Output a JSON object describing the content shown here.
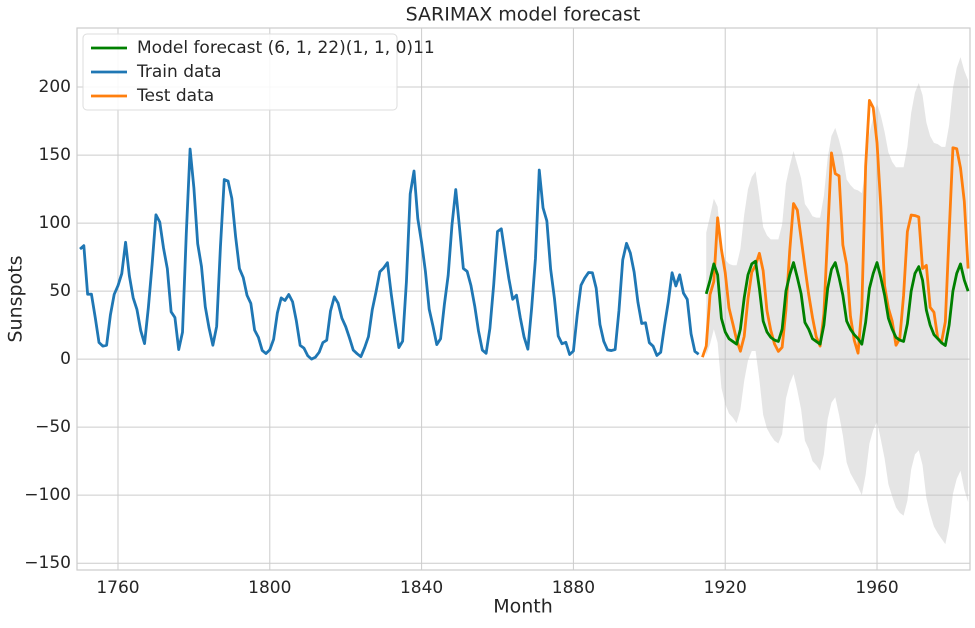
{
  "chart_data": {
    "type": "line",
    "title": "SARIMAX model forecast",
    "x_label": "Month",
    "y_label": "Sunspots",
    "xlim": [
      1749.2,
      1984.5
    ],
    "ylim": [
      -155,
      243.4
    ],
    "xticks": [
      1760,
      1800,
      1840,
      1880,
      1920,
      1960
    ],
    "yticks": [
      {
        "value": -150,
        "label": "−150"
      },
      {
        "value": -100,
        "label": "−100"
      },
      {
        "value": -50,
        "label": "−50"
      },
      0,
      50,
      100,
      150,
      200
    ],
    "grid": true,
    "legend": "upper left",
    "series": [
      {
        "name": "Model forecast (6, 1, 22)(1, 1, 0)11",
        "color": "#008000",
        "x": [
          1915,
          1916,
          1917,
          1918,
          1919,
          1920,
          1921,
          1922,
          1923,
          1924,
          1925,
          1926,
          1927,
          1928,
          1929,
          1930,
          1931,
          1932,
          1933,
          1934,
          1935,
          1936,
          1937,
          1938,
          1939,
          1940,
          1941,
          1942,
          1943,
          1944,
          1945,
          1946,
          1947,
          1948,
          1949,
          1950,
          1951,
          1952,
          1953,
          1954,
          1955,
          1956,
          1957,
          1958,
          1959,
          1960,
          1961,
          1962,
          1963,
          1964,
          1965,
          1966,
          1967,
          1968,
          1969,
          1970,
          1971,
          1972,
          1973,
          1974,
          1975,
          1976,
          1977,
          1978,
          1979,
          1980,
          1981,
          1982,
          1983,
          1984
        ],
        "values": [
          48,
          58,
          70,
          62,
          30,
          20,
          15,
          13,
          11,
          22,
          45,
          62,
          70,
          72,
          52,
          28,
          20,
          16,
          14,
          13,
          22,
          50,
          62,
          71,
          60,
          48,
          27,
          22,
          15,
          13,
          11,
          25,
          52,
          66,
          71,
          60,
          47,
          28,
          22,
          18,
          15,
          11,
          27,
          52,
          63,
          71,
          60,
          47,
          30,
          22,
          16,
          14,
          13,
          26,
          50,
          63,
          68,
          58,
          36,
          25,
          18,
          15,
          12,
          10,
          25,
          50,
          63,
          70,
          58,
          50
        ]
      },
      {
        "name": "Train data",
        "color": "#1f77b4",
        "x": [
          1750,
          1751,
          1752,
          1753,
          1754,
          1755,
          1756,
          1757,
          1758,
          1759,
          1760,
          1761,
          1762,
          1763,
          1764,
          1765,
          1766,
          1767,
          1768,
          1769,
          1770,
          1771,
          1772,
          1773,
          1774,
          1775,
          1776,
          1777,
          1778,
          1779,
          1780,
          1781,
          1782,
          1783,
          1784,
          1785,
          1786,
          1787,
          1788,
          1789,
          1790,
          1791,
          1792,
          1793,
          1794,
          1795,
          1796,
          1797,
          1798,
          1799,
          1800,
          1801,
          1802,
          1803,
          1804,
          1805,
          1806,
          1807,
          1808,
          1809,
          1810,
          1811,
          1812,
          1813,
          1814,
          1815,
          1816,
          1817,
          1818,
          1819,
          1820,
          1821,
          1822,
          1823,
          1824,
          1825,
          1826,
          1827,
          1828,
          1829,
          1830,
          1831,
          1832,
          1833,
          1834,
          1835,
          1836,
          1837,
          1838,
          1839,
          1840,
          1841,
          1842,
          1843,
          1844,
          1845,
          1846,
          1847,
          1848,
          1849,
          1850,
          1851,
          1852,
          1853,
          1854,
          1855,
          1856,
          1857,
          1858,
          1859,
          1860,
          1861,
          1862,
          1863,
          1864,
          1865,
          1866,
          1867,
          1868,
          1869,
          1870,
          1871,
          1872,
          1873,
          1874,
          1875,
          1876,
          1877,
          1878,
          1879,
          1880,
          1881,
          1882,
          1883,
          1884,
          1885,
          1886,
          1887,
          1888,
          1889,
          1890,
          1891,
          1892,
          1893,
          1894,
          1895,
          1896,
          1897,
          1898,
          1899,
          1900,
          1901,
          1902,
          1903,
          1904,
          1905,
          1906,
          1907,
          1908,
          1909,
          1910,
          1911,
          1912,
          1913
        ],
        "values": [
          80.9,
          83.4,
          47.7,
          47.8,
          30.7,
          12.2,
          9.6,
          10.2,
          32.4,
          47.6,
          54.0,
          62.9,
          85.9,
          61.2,
          45.1,
          36.4,
          20.9,
          11.4,
          37.8,
          69.8,
          106.1,
          100.8,
          81.6,
          66.5,
          34.8,
          30.6,
          7.0,
          19.8,
          92.5,
          154.4,
          125.9,
          84.8,
          68.1,
          38.5,
          22.8,
          10.2,
          24.1,
          82.9,
          132.0,
          130.9,
          118.1,
          89.9,
          66.6,
          60.0,
          46.9,
          41.0,
          21.3,
          16.0,
          6.4,
          4.1,
          6.8,
          14.5,
          34.0,
          45.0,
          43.1,
          47.5,
          42.2,
          28.1,
          10.1,
          8.1,
          2.5,
          0.0,
          1.4,
          5.0,
          12.2,
          13.9,
          35.4,
          45.8,
          41.1,
          30.1,
          23.9,
          15.6,
          6.6,
          4.0,
          1.8,
          8.5,
          16.6,
          36.3,
          49.6,
          64.2,
          67.0,
          70.9,
          47.8,
          27.5,
          8.5,
          13.2,
          56.9,
          121.5,
          138.3,
          103.2,
          85.7,
          64.6,
          36.7,
          24.2,
          10.7,
          15.0,
          40.1,
          61.5,
          98.5,
          124.7,
          96.3,
          66.6,
          64.5,
          54.1,
          39.0,
          20.6,
          6.7,
          4.3,
          22.7,
          54.8,
          93.8,
          95.8,
          77.2,
          59.1,
          44.0,
          47.0,
          30.5,
          16.3,
          7.3,
          37.6,
          74.0,
          139.0,
          111.2,
          101.6,
          66.2,
          44.7,
          17.0,
          11.3,
          12.4,
          3.4,
          6.0,
          32.3,
          54.3,
          59.7,
          63.7,
          63.5,
          52.2,
          25.4,
          13.1,
          6.8,
          6.3,
          7.1,
          35.6,
          73.0,
          85.1,
          78.0,
          64.0,
          41.8,
          26.2,
          26.7,
          12.1,
          9.5,
          2.7,
          5.0,
          24.4,
          42.0,
          63.5,
          53.8,
          62.0,
          48.5,
          43.9,
          18.6,
          5.7,
          3.6
        ]
      },
      {
        "name": "Test data",
        "color": "#ff7f0e",
        "x": [
          1914,
          1915,
          1916,
          1917,
          1918,
          1919,
          1920,
          1921,
          1922,
          1923,
          1924,
          1925,
          1926,
          1927,
          1928,
          1929,
          1930,
          1931,
          1932,
          1933,
          1934,
          1935,
          1936,
          1937,
          1938,
          1939,
          1940,
          1941,
          1942,
          1943,
          1944,
          1945,
          1946,
          1947,
          1948,
          1949,
          1950,
          1951,
          1952,
          1953,
          1954,
          1955,
          1956,
          1957,
          1958,
          1959,
          1960,
          1961,
          1962,
          1963,
          1964,
          1965,
          1966,
          1967,
          1968,
          1969,
          1970,
          1971,
          1972,
          1973,
          1974,
          1975,
          1976,
          1977,
          1978,
          1979,
          1980,
          1981,
          1982,
          1983,
          1984
        ],
        "values": [
          1.4,
          9.6,
          47.4,
          57.1,
          103.9,
          80.6,
          63.6,
          37.6,
          26.1,
          14.2,
          5.8,
          16.7,
          44.3,
          63.9,
          69.0,
          77.8,
          64.9,
          35.7,
          21.2,
          11.1,
          5.7,
          8.7,
          36.1,
          79.7,
          114.4,
          109.6,
          88.8,
          67.8,
          47.5,
          30.6,
          16.3,
          9.6,
          33.2,
          92.6,
          151.6,
          136.3,
          134.7,
          83.9,
          69.4,
          31.5,
          13.9,
          4.4,
          38.0,
          141.7,
          190.2,
          184.8,
          159.0,
          112.3,
          53.9,
          37.5,
          27.9,
          10.2,
          15.1,
          47.0,
          93.8,
          105.9,
          105.5,
          104.5,
          66.6,
          68.9,
          38.0,
          34.5,
          15.5,
          12.6,
          27.5,
          92.5,
          155.4,
          154.7,
          140.5,
          115.9,
          66.6
        ]
      }
    ],
    "confidence_interval": {
      "color": "#bdbdbd",
      "lower": [
        3,
        11,
        22,
        12,
        -21,
        -33,
        -40,
        -43,
        -47,
        -37,
        -16,
        -1,
        6,
        6,
        -15,
        -41,
        -51,
        -56,
        -60,
        -62,
        -55,
        -29,
        -18,
        -11,
        -23,
        -37,
        -60,
        -66,
        -75,
        -78,
        -82,
        -70,
        -44,
        -32,
        -28,
        -41,
        -56,
        -76,
        -84,
        -89,
        -94,
        -100,
        -85,
        -62,
        -52,
        -46,
        -59,
        -73,
        -92,
        -101,
        -109,
        -113,
        -115,
        -104,
        -81,
        -70,
        -67,
        -78,
        -102,
        -114,
        -123,
        -128,
        -132,
        -136,
        -122,
        -99,
        -88,
        -82,
        -96,
        -105
      ],
      "upper": [
        93,
        105,
        118,
        112,
        81,
        73,
        70,
        69,
        69,
        81,
        106,
        125,
        134,
        138,
        119,
        97,
        91,
        88,
        88,
        88,
        99,
        129,
        142,
        153,
        143,
        133,
        114,
        110,
        105,
        104,
        104,
        120,
        148,
        164,
        170,
        161,
        150,
        132,
        128,
        125,
        124,
        122,
        139,
        166,
        178,
        188,
        179,
        167,
        152,
        145,
        141,
        141,
        141,
        156,
        181,
        196,
        203,
        194,
        174,
        164,
        159,
        158,
        156,
        156,
        172,
        199,
        214,
        222,
        212,
        205
      ]
    }
  }
}
